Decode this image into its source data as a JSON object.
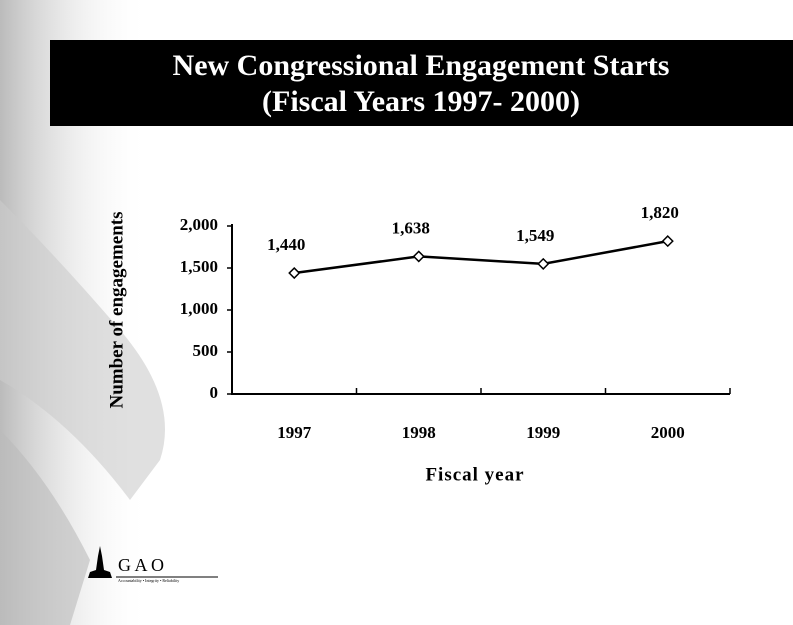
{
  "chart_data": {
    "type": "line",
    "title": "New Congressional Engagement Starts",
    "subtitle": "(Fiscal Years 1997- 2000)",
    "y_label": "Number of engagements",
    "x_label": "Fiscal year",
    "categories": [
      "1997",
      "1998",
      "1999",
      "2000"
    ],
    "series": [
      {
        "color": "#000000",
        "values": [
          1440,
          1638,
          1549,
          1820
        ],
        "value_labels": [
          "1,440",
          "1,638",
          "1,549",
          "1,820"
        ]
      }
    ],
    "ylim": [
      0,
      2000
    ],
    "yticks": [
      0,
      500,
      {
        "value": 1000,
        "label": "1,000"
      },
      {
        "value": 1500,
        "label": "1,500"
      },
      {
        "value": 2000,
        "label": "2,000"
      }
    ],
    "grid": false
  },
  "logo": {
    "text": "G A O",
    "tagline": "Accountability • Integrity • Reliability"
  }
}
